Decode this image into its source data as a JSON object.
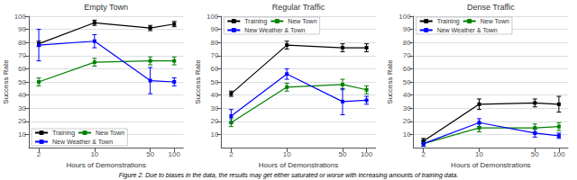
{
  "chart_data": [
    {
      "type": "line",
      "title": "Empty Town",
      "xlabel": "Hours of Demonstrations",
      "ylabel": "Success Rate",
      "x": [
        2,
        10,
        50,
        100
      ],
      "series": [
        {
          "name": "Training",
          "color": "black",
          "values": [
            79,
            95,
            91,
            94
          ],
          "yerr": [
            2,
            2,
            2,
            2
          ]
        },
        {
          "name": "New Town",
          "color": "green",
          "values": [
            50,
            65,
            66,
            66
          ],
          "yerr": [
            3,
            3,
            3,
            3
          ]
        },
        {
          "name": "New Weather & Town",
          "color": "blue",
          "values": [
            78,
            81,
            51,
            50
          ],
          "yerr": [
            12,
            5,
            10,
            3
          ]
        }
      ],
      "log": "x",
      "xlim": [
        1.5,
        130
      ],
      "xticks": [
        2,
        10,
        50,
        100
      ],
      "ylim": [
        0,
        100
      ],
      "yticks": [
        10,
        20,
        30,
        40,
        50,
        60,
        70,
        80,
        90,
        100
      ],
      "grid": true,
      "legend": "lower left",
      "marker": "square"
    },
    {
      "type": "line",
      "title": "Regular Traffic",
      "xlabel": "Hours of Demonstrations",
      "ylabel": "Success Rate",
      "x": [
        2,
        10,
        50,
        100
      ],
      "series": [
        {
          "name": "Training",
          "color": "black",
          "values": [
            41,
            78,
            76,
            76
          ],
          "yerr": [
            2,
            3,
            3,
            3
          ]
        },
        {
          "name": "New Town",
          "color": "green",
          "values": [
            19,
            46,
            48,
            44
          ],
          "yerr": [
            3,
            3,
            4,
            3
          ]
        },
        {
          "name": "New Weather & Town",
          "color": "blue",
          "values": [
            24,
            56,
            35,
            36
          ],
          "yerr": [
            5,
            4,
            10,
            3
          ]
        }
      ],
      "log": "x",
      "xlim": [
        1.5,
        130
      ],
      "xticks": [
        2,
        10,
        50,
        100
      ],
      "ylim": [
        0,
        100
      ],
      "yticks": [
        10,
        20,
        30,
        40,
        50,
        60,
        70,
        80,
        90,
        100
      ],
      "grid": true,
      "legend": "upper left",
      "marker": "square"
    },
    {
      "type": "line",
      "title": "Dense Traffic",
      "xlabel": "Hours of Demonstrations",
      "ylabel": "Success Rate",
      "x": [
        2,
        10,
        50,
        100
      ],
      "series": [
        {
          "name": "Training",
          "color": "black",
          "values": [
            5,
            33,
            34,
            33
          ],
          "yerr": [
            2,
            4,
            3,
            6
          ]
        },
        {
          "name": "New Town",
          "color": "green",
          "values": [
            3,
            15,
            15,
            16
          ],
          "yerr": [
            2,
            3,
            3,
            3
          ]
        },
        {
          "name": "New Weather & Town",
          "color": "blue",
          "values": [
            3,
            19,
            11,
            9
          ],
          "yerr": [
            2,
            3,
            3,
            2
          ]
        }
      ],
      "log": "x",
      "xlim": [
        1.5,
        130
      ],
      "xticks": [
        2,
        10,
        50,
        100
      ],
      "ylim": [
        0,
        100
      ],
      "yticks": [
        10,
        20,
        30,
        40,
        50,
        60,
        70,
        80,
        90,
        100
      ],
      "grid": true,
      "legend": "upper left",
      "marker": "square"
    }
  ],
  "caption": "Figure 2. Due to biases in the data, the results may get either saturated or worse with increasing amounts of training data."
}
